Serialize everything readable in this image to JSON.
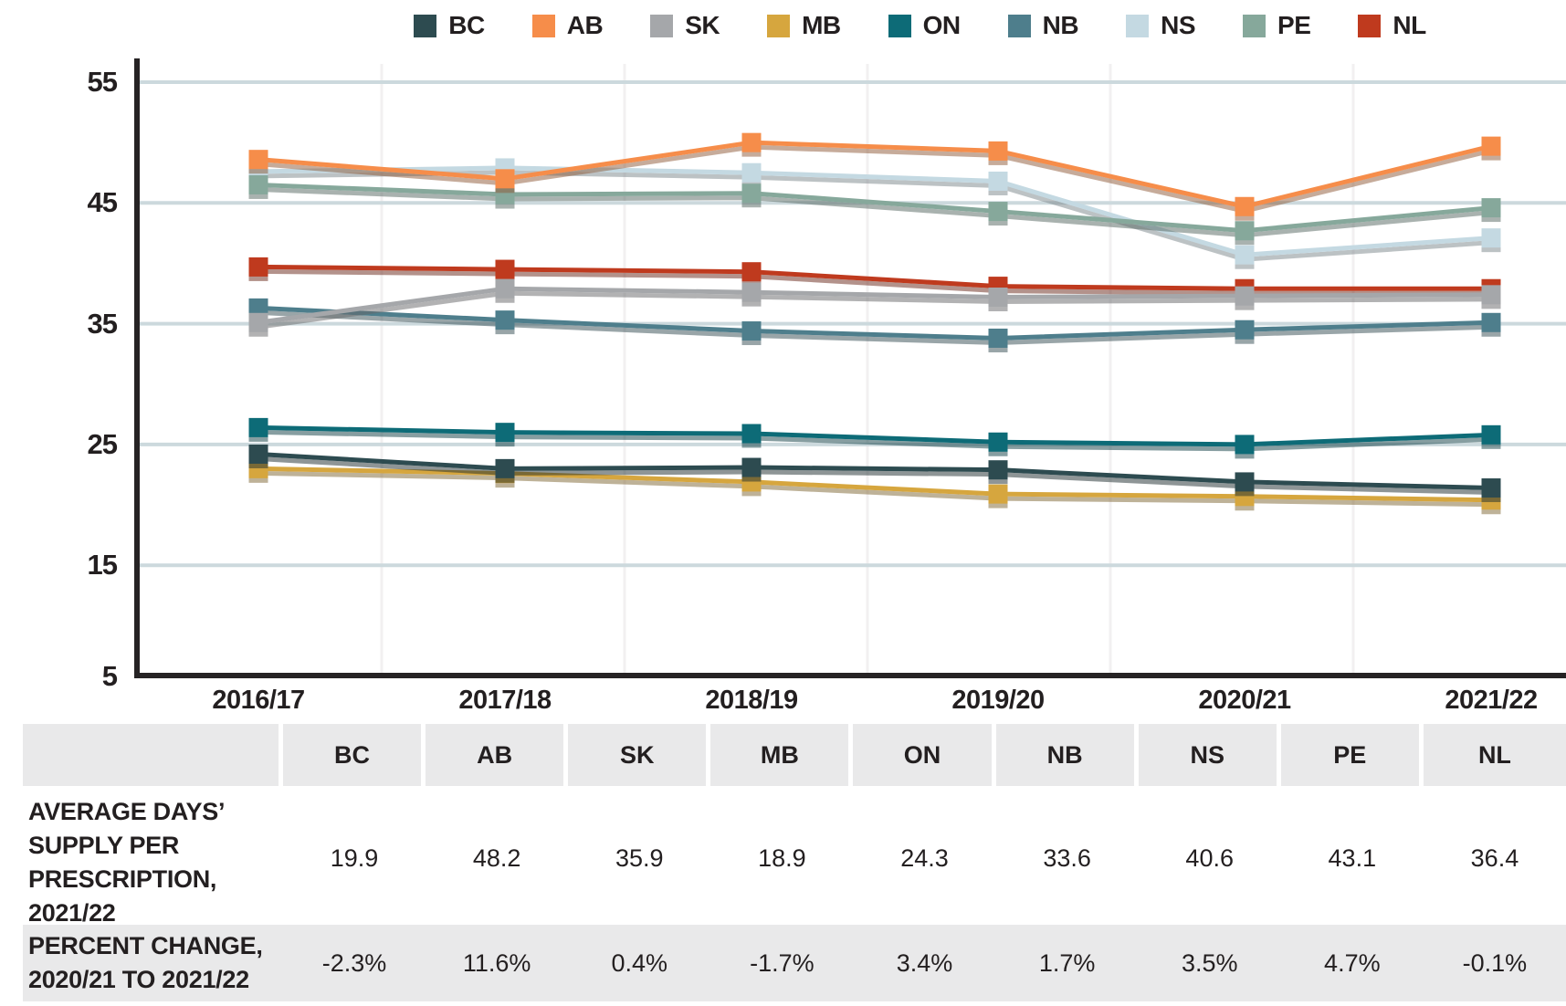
{
  "accent_colors": {
    "text": "#231f20",
    "gridline": "#ccd9dd",
    "column_separator": "#f2f0f1",
    "axis": "#262324",
    "table_row_bg": "#e9e9ea"
  },
  "chart_data": {
    "type": "line",
    "title": "",
    "xlabel": "",
    "ylabel": "",
    "categories": [
      "2016/17",
      "2017/18",
      "2018/19",
      "2019/20",
      "2020/21",
      "2021/22"
    ],
    "yticks": [
      5,
      15,
      25,
      35,
      45,
      55
    ],
    "ylim": [
      5,
      55
    ],
    "grid": "horizontal",
    "legend_position": "top",
    "marker": "square",
    "series": [
      {
        "name": "BC",
        "color": "#2d4b50",
        "values": [
          22.7,
          21.5,
          21.6,
          21.4,
          20.4,
          19.9
        ]
      },
      {
        "name": "AB",
        "color": "#f68d4a",
        "values": [
          47.1,
          45.5,
          48.5,
          47.8,
          43.2,
          48.2
        ]
      },
      {
        "name": "SK",
        "color": "#a5a7aa",
        "values": [
          33.6,
          36.4,
          36.1,
          35.7,
          35.8,
          35.9
        ]
      },
      {
        "name": "MB",
        "color": "#d6a63e",
        "values": [
          21.5,
          21.1,
          20.4,
          19.4,
          19.2,
          18.9
        ]
      },
      {
        "name": "ON",
        "color": "#0d6b77",
        "values": [
          24.9,
          24.5,
          24.4,
          23.7,
          23.5,
          24.3
        ]
      },
      {
        "name": "NB",
        "color": "#4e7e8c",
        "values": [
          34.8,
          33.8,
          32.9,
          32.3,
          33.0,
          33.6
        ]
      },
      {
        "name": "NS",
        "color": "#c4d9e2",
        "values": [
          46.1,
          46.4,
          46.0,
          45.3,
          39.2,
          40.6
        ]
      },
      {
        "name": "PE",
        "color": "#86a89b",
        "values": [
          45.0,
          44.2,
          44.3,
          42.8,
          41.2,
          43.1
        ]
      },
      {
        "name": "NL",
        "color": "#bf3a1e",
        "values": [
          38.2,
          38.0,
          37.8,
          36.6,
          36.4,
          36.4
        ]
      }
    ]
  },
  "table": {
    "columns": [
      "BC",
      "AB",
      "SK",
      "MB",
      "ON",
      "NB",
      "NS",
      "PE",
      "NL"
    ],
    "rows": [
      {
        "label": "AVERAGE DAYS’ SUPPLY PER PRESCRIPTION, 2021/22",
        "values": [
          "19.9",
          "48.2",
          "35.9",
          "18.9",
          "24.3",
          "33.6",
          "40.6",
          "43.1",
          "36.4"
        ]
      },
      {
        "label": "PERCENT CHANGE, 2020/21 TO 2021/22",
        "values": [
          "-2.3%",
          "11.6%",
          "0.4%",
          "-1.7%",
          "3.4%",
          "1.7%",
          "3.5%",
          "4.7%",
          "-0.1%"
        ]
      }
    ]
  }
}
